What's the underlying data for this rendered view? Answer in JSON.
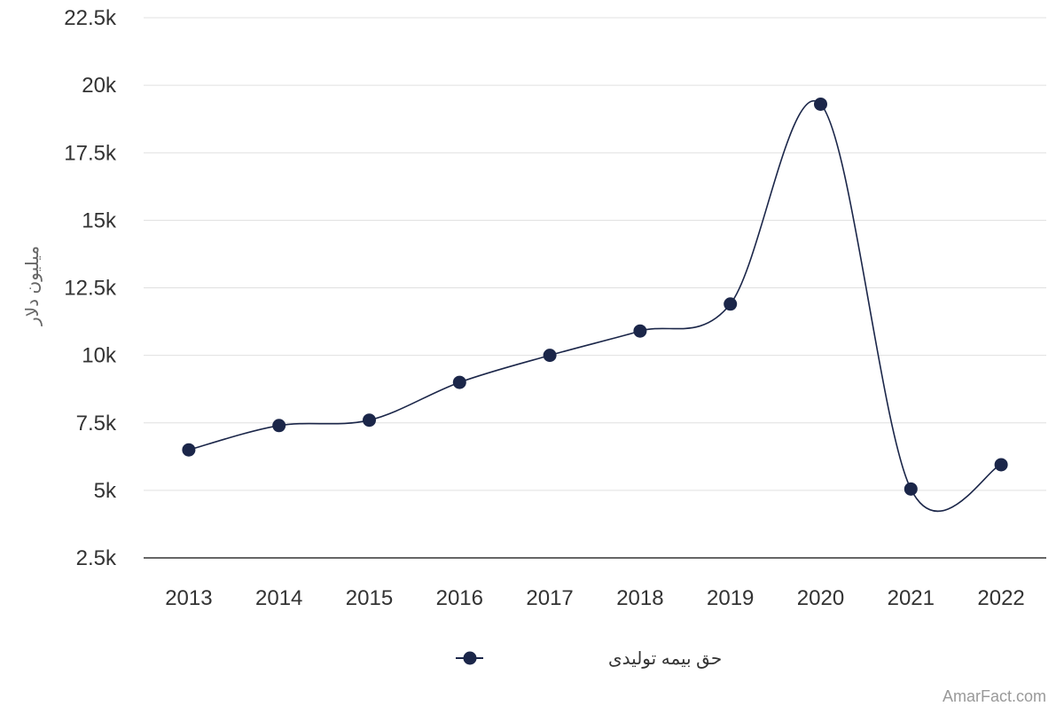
{
  "chart_data": {
    "type": "line",
    "title": "",
    "xlabel": "",
    "ylabel": "میلیون دلار",
    "categories": [
      "2013",
      "2014",
      "2015",
      "2016",
      "2017",
      "2018",
      "2019",
      "2020",
      "2021",
      "2022"
    ],
    "series": [
      {
        "name": "حق بیمه تولیدی",
        "values": [
          6500,
          7400,
          7600,
          9000,
          10000,
          10900,
          11900,
          19300,
          5050,
          5950
        ],
        "color": "#1b2649"
      }
    ],
    "ylim": [
      2500,
      22500
    ],
    "yticks": [
      2500,
      5000,
      7500,
      10000,
      12500,
      15000,
      17500,
      20000,
      22500
    ],
    "ytick_labels": [
      "2.5k",
      "5k",
      "7.5k",
      "10k",
      "12.5k",
      "15k",
      "17.5k",
      "20k",
      "22.5k"
    ],
    "grid": true,
    "legend_position": "bottom-center",
    "smooth": true
  },
  "watermark": "AmarFact.com"
}
